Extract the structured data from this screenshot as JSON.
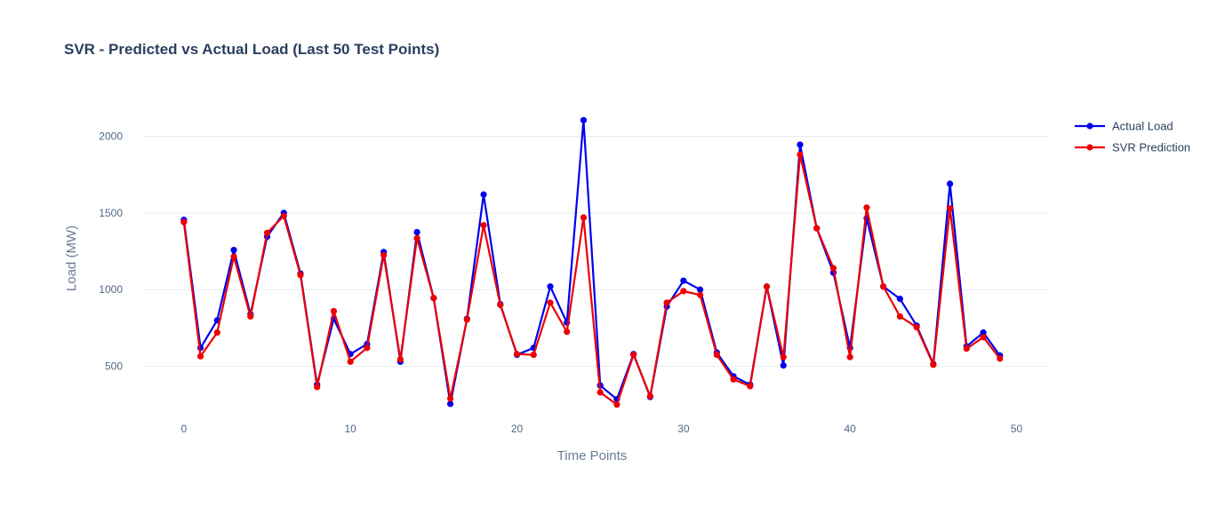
{
  "chart_data": {
    "type": "line",
    "title": "SVR - Predicted vs Actual Load (Last 50 Test Points)",
    "xlabel": "Time Points",
    "ylabel": "Load (MW)",
    "xlim": [
      -2.5,
      52
    ],
    "ylim": [
      110,
      2240
    ],
    "x_ticks": [
      0,
      10,
      20,
      30,
      40,
      50
    ],
    "y_ticks": [
      500,
      1000,
      1500,
      2000
    ],
    "grid": true,
    "legend_position": "top-right",
    "x": [
      0,
      1,
      2,
      3,
      4,
      5,
      6,
      7,
      8,
      9,
      10,
      11,
      12,
      13,
      14,
      15,
      16,
      17,
      18,
      19,
      20,
      21,
      22,
      23,
      24,
      25,
      26,
      27,
      28,
      29,
      30,
      31,
      32,
      33,
      34,
      35,
      36,
      37,
      38,
      39,
      40,
      41,
      42,
      43,
      44,
      45,
      46,
      47,
      48,
      49
    ],
    "series": [
      {
        "name": "Actual Load",
        "color": "#0000ee",
        "values": [
          1455,
          620,
          800,
          1258,
          840,
          1345,
          1500,
          1105,
          380,
          810,
          580,
          645,
          1245,
          530,
          1375,
          945,
          255,
          810,
          1620,
          905,
          575,
          620,
          1020,
          785,
          2105,
          375,
          285,
          580,
          300,
          890,
          1058,
          1000,
          590,
          435,
          380,
          1020,
          505,
          1945,
          1400,
          1110,
          620,
          1465,
          1020,
          940,
          765,
          515,
          1690,
          630,
          720,
          570
        ]
      },
      {
        "name": "SVR Prediction",
        "color": "#ee0000",
        "values": [
          1440,
          565,
          720,
          1215,
          825,
          1370,
          1480,
          1095,
          365,
          860,
          530,
          620,
          1225,
          545,
          1335,
          945,
          290,
          805,
          1420,
          900,
          580,
          575,
          915,
          725,
          1470,
          330,
          250,
          575,
          305,
          915,
          990,
          965,
          575,
          415,
          370,
          1020,
          560,
          1880,
          1400,
          1140,
          560,
          1535,
          1020,
          825,
          755,
          510,
          1530,
          615,
          690,
          550
        ]
      }
    ]
  }
}
